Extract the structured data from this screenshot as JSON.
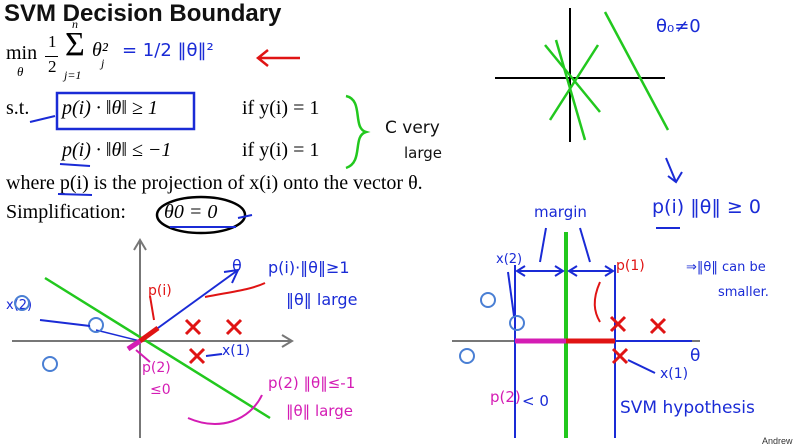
{
  "slide": {
    "title": "SVM Decision Boundary",
    "min_label": "min",
    "min_sub": "θ",
    "half": "1",
    "half_den": "2",
    "sum_top": "n",
    "sum_bottom": "j=1",
    "sum_sym": "Σ",
    "theta_sq": "θ²",
    "theta_sq_sub": "j",
    "st_label": "s.t.",
    "constraint1": "p(i) · ‖θ‖ ≥ 1",
    "if1": "if y(i) = 1",
    "constraint2": "p(i) · ‖θ‖ ≤ −1",
    "if2": "if y(i) = 1",
    "where_line": "where p(i) is the projection of x(i) onto the vector θ.",
    "simplification_label": "Simplification:",
    "simplification_eq": "θ0 = 0",
    "footer": "Andrew"
  },
  "annotations": {
    "half_norm": "= 1/2 ‖θ‖²",
    "c_very_large_1": "C very",
    "c_very_large_2": "large",
    "theta0_ne_0": "θ₀≠0",
    "p_norm_ge_0": "p(i) ‖θ‖ ≥ 0",
    "norm_can_be": "⇒‖θ‖ can be",
    "smaller": "smaller.",
    "margin": "margin",
    "left_p_norm": "p(i)·‖θ‖≥1",
    "left_norm_large": "‖θ‖ large",
    "left_theta": "θ",
    "left_p_i": "p(i)",
    "left_x2": "x(2)",
    "left_x1": "x(1)",
    "left_p2": "p(2)",
    "left_le0": "≤0",
    "left_p2_norm": "p(2) ‖θ‖≤-1",
    "left_norm_large2": "‖θ‖ large",
    "right_x2": "x(2)",
    "right_p1": "p(1)",
    "right_x1": "x(1)",
    "right_theta": "θ",
    "right_p2": "p(2)",
    "right_lt0": "< 0",
    "svm_hypothesis": "SVM hypothesis"
  }
}
